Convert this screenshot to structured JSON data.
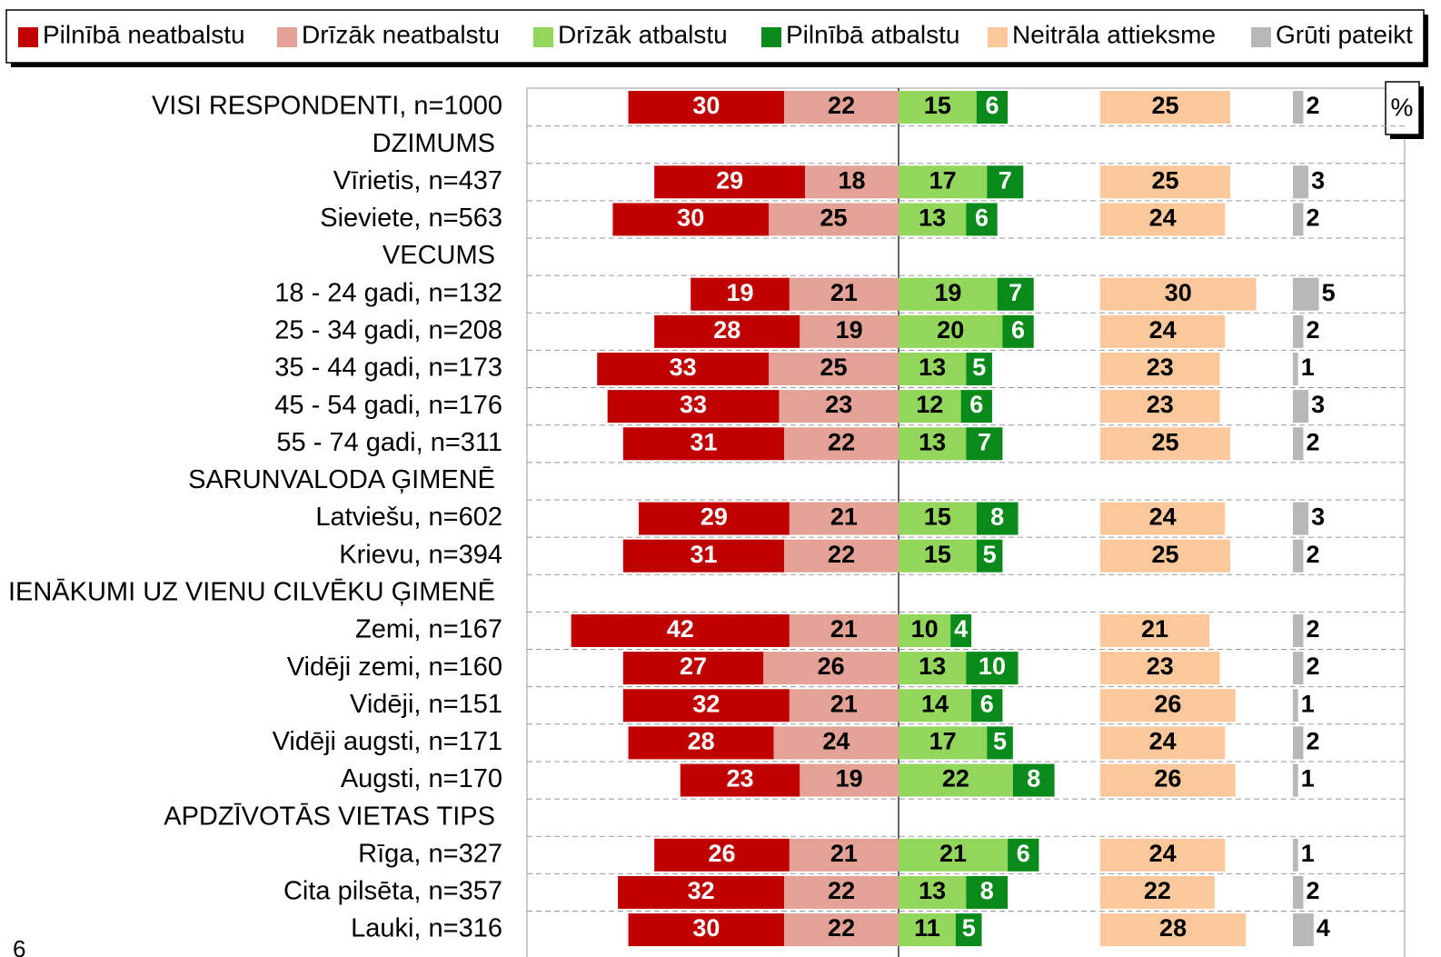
{
  "chart_data": {
    "type": "bar",
    "orientation": "horizontal",
    "unit": "%",
    "page_number": "6",
    "categories": [
      "VISI RESPONDENTI, n=1000",
      "DZIMUMS",
      "Vīrietis, n=437",
      "Sieviete, n=563",
      "VECUMS",
      "18 - 24 gadi, n=132",
      "25 - 34 gadi, n=208",
      "35 - 44 gadi, n=173",
      "45 - 54 gadi, n=176",
      "55 - 74 gadi, n=311",
      "SARUNVALODA ĢIMENĒ",
      "Latviešu, n=602",
      "Krievu, n=394",
      "IENĀKUMI UZ VIENU CILVĒKU ĢIMENĒ",
      "Zemi, n=167",
      "Vidēji zemi, n=160",
      "Vidēji, n=151",
      "Vidēji augsti, n=171",
      "Augsti, n=170",
      "APDZĪVOTĀS VIETAS TIPS",
      "Rīga, n=327",
      "Cita pilsēta, n=357",
      "Lauki, n=316"
    ],
    "series": [
      {
        "name": "Pilnībā neatbalstu",
        "color": "#c00000",
        "label_color": "#ffffff",
        "values": [
          30,
          null,
          29,
          30,
          null,
          19,
          28,
          33,
          33,
          31,
          null,
          29,
          31,
          null,
          42,
          27,
          32,
          28,
          23,
          null,
          26,
          32,
          30
        ]
      },
      {
        "name": "Drīzāk neatbalstu",
        "color": "#e3a295",
        "label_color": "#000000",
        "values": [
          22,
          null,
          18,
          25,
          null,
          21,
          19,
          25,
          23,
          22,
          null,
          21,
          22,
          null,
          21,
          26,
          21,
          24,
          19,
          null,
          21,
          22,
          22
        ]
      },
      {
        "name": "Drīzāk atbalstu",
        "color": "#92d65c",
        "label_color": "#000000",
        "values": [
          15,
          null,
          17,
          13,
          null,
          19,
          20,
          13,
          12,
          13,
          null,
          15,
          15,
          null,
          10,
          13,
          14,
          17,
          22,
          null,
          21,
          13,
          11
        ]
      },
      {
        "name": "Pilnībā atbalstu",
        "color": "#0a8a1a",
        "label_color": "#ffffff",
        "values": [
          6,
          null,
          7,
          6,
          null,
          7,
          6,
          5,
          6,
          7,
          null,
          8,
          5,
          null,
          4,
          10,
          6,
          5,
          8,
          null,
          6,
          8,
          5
        ]
      },
      {
        "name": "Neitrāla attieksme",
        "color": "#fcc89b",
        "label_color": "#000000",
        "values": [
          25,
          null,
          25,
          24,
          null,
          30,
          24,
          23,
          23,
          25,
          null,
          24,
          25,
          null,
          21,
          23,
          26,
          24,
          26,
          null,
          24,
          22,
          28
        ]
      },
      {
        "name": "Grūti pateikt",
        "color": "#b8b8b8",
        "label_color": "#000000",
        "values": [
          2,
          null,
          3,
          2,
          null,
          5,
          2,
          1,
          3,
          2,
          null,
          3,
          2,
          null,
          2,
          2,
          1,
          2,
          1,
          null,
          1,
          2,
          4
        ]
      }
    ]
  }
}
